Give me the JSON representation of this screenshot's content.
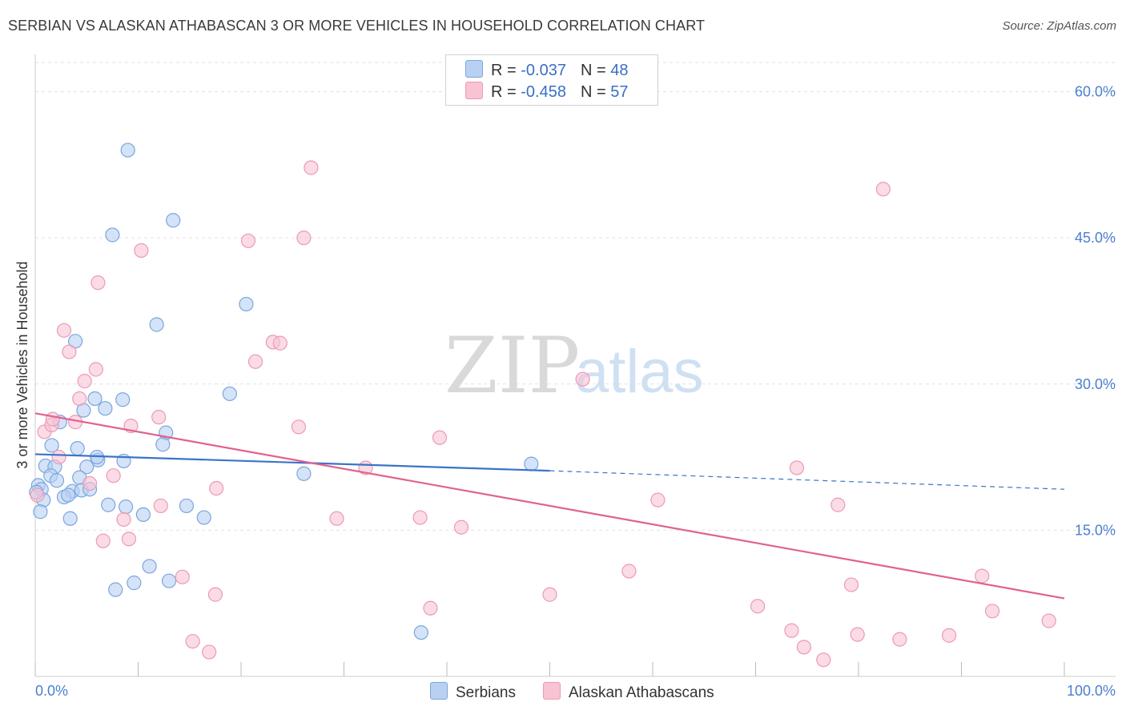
{
  "header": {
    "title": "SERBIAN VS ALASKAN ATHABASCAN 3 OR MORE VEHICLES IN HOUSEHOLD CORRELATION CHART",
    "source": "Source: ZipAtlas.com"
  },
  "legend": {
    "rows": [
      {
        "r_label": "R = ",
        "r_value": "-0.037",
        "n_label": "N = ",
        "n_value": "48"
      },
      {
        "r_label": "R = ",
        "r_value": "-0.458",
        "n_label": "N = ",
        "n_value": "57"
      }
    ]
  },
  "bottom_legend": {
    "series1": "Serbians",
    "series2": "Alaskan Athabascans"
  },
  "watermark": {
    "zip": "ZIP",
    "atlas": "atlas"
  },
  "colors": {
    "blue_fill": "#b8d1f2",
    "blue_stroke": "#7aa6de",
    "blue_line": "#3a74c8",
    "pink_fill": "#f8c3d3",
    "pink_stroke": "#ec9ab5",
    "pink_line": "#e0628e",
    "tick_label": "#4a7fd0",
    "grid": "#e2e2e2"
  },
  "chart_data": {
    "type": "scatter",
    "title": "SERBIAN VS ALASKAN ATHABASCAN 3 OR MORE VEHICLES IN HOUSEHOLD CORRELATION CHART",
    "xlabel": "",
    "ylabel": "3 or more Vehicles in Household",
    "xlim": [
      0,
      100
    ],
    "ylim": [
      0,
      63
    ],
    "x_tick_labels": [
      {
        "value": 0,
        "label": "0.0%"
      },
      {
        "value": 100,
        "label": "100.0%"
      }
    ],
    "y_ticks": [
      {
        "value": 15,
        "label": "15.0%"
      },
      {
        "value": 30,
        "label": "30.0%"
      },
      {
        "value": 45,
        "label": "45.0%"
      },
      {
        "value": 60,
        "label": "60.0%"
      }
    ],
    "x_minor_ticks": [
      0,
      10,
      20,
      30,
      40,
      50,
      60,
      70,
      80,
      90,
      100
    ],
    "series": [
      {
        "name": "Serbians",
        "r": -0.037,
        "n": 48,
        "trend": {
          "x": [
            0,
            50
          ],
          "y": [
            22.8,
            21.1
          ],
          "dash_x": [
            50,
            100
          ],
          "dash_y": [
            21.1,
            19.2
          ]
        },
        "points": [
          [
            9.0,
            54.0
          ],
          [
            7.5,
            45.3
          ],
          [
            13.4,
            46.8
          ],
          [
            20.5,
            38.2
          ],
          [
            11.8,
            36.1
          ],
          [
            3.9,
            34.4
          ],
          [
            18.9,
            29.0
          ],
          [
            5.8,
            28.5
          ],
          [
            8.5,
            28.4
          ],
          [
            4.7,
            27.3
          ],
          [
            6.8,
            27.5
          ],
          [
            2.4,
            26.1
          ],
          [
            12.7,
            25.0
          ],
          [
            1.6,
            23.7
          ],
          [
            4.1,
            23.4
          ],
          [
            12.4,
            23.8
          ],
          [
            6.1,
            22.2
          ],
          [
            6.0,
            22.5
          ],
          [
            8.6,
            22.1
          ],
          [
            1.0,
            21.6
          ],
          [
            1.9,
            21.5
          ],
          [
            5.0,
            21.5
          ],
          [
            26.1,
            20.8
          ],
          [
            48.2,
            21.8
          ],
          [
            1.5,
            20.6
          ],
          [
            2.1,
            20.1
          ],
          [
            4.3,
            20.4
          ],
          [
            0.3,
            19.6
          ],
          [
            0.6,
            19.2
          ],
          [
            3.6,
            19.0
          ],
          [
            4.5,
            19.1
          ],
          [
            5.3,
            19.2
          ],
          [
            2.8,
            18.4
          ],
          [
            3.2,
            18.6
          ],
          [
            0.8,
            18.1
          ],
          [
            0.1,
            18.9
          ],
          [
            7.1,
            17.6
          ],
          [
            8.8,
            17.4
          ],
          [
            14.7,
            17.5
          ],
          [
            0.5,
            16.9
          ],
          [
            10.5,
            16.6
          ],
          [
            3.4,
            16.2
          ],
          [
            16.4,
            16.3
          ],
          [
            11.1,
            11.3
          ],
          [
            9.6,
            9.6
          ],
          [
            13.0,
            9.8
          ],
          [
            7.8,
            8.9
          ],
          [
            37.5,
            4.5
          ]
        ]
      },
      {
        "name": "Alaskan Athabascans",
        "r": -0.458,
        "n": 57,
        "trend": {
          "x": [
            0,
            100
          ],
          "y": [
            27.0,
            8.0
          ]
        },
        "points": [
          [
            26.8,
            52.2
          ],
          [
            82.4,
            50.0
          ],
          [
            20.7,
            44.7
          ],
          [
            26.1,
            45.0
          ],
          [
            10.3,
            43.7
          ],
          [
            6.1,
            40.4
          ],
          [
            2.8,
            35.5
          ],
          [
            23.1,
            34.3
          ],
          [
            23.8,
            34.2
          ],
          [
            3.3,
            33.3
          ],
          [
            21.4,
            32.3
          ],
          [
            5.9,
            31.5
          ],
          [
            4.8,
            30.3
          ],
          [
            53.2,
            30.5
          ],
          [
            4.3,
            28.5
          ],
          [
            0.9,
            25.1
          ],
          [
            1.6,
            25.8
          ],
          [
            1.7,
            26.4
          ],
          [
            3.9,
            26.1
          ],
          [
            9.3,
            25.7
          ],
          [
            12.0,
            26.6
          ],
          [
            25.6,
            25.6
          ],
          [
            39.3,
            24.5
          ],
          [
            2.3,
            22.5
          ],
          [
            32.1,
            21.4
          ],
          [
            74.0,
            21.4
          ],
          [
            7.6,
            20.6
          ],
          [
            5.3,
            19.8
          ],
          [
            17.6,
            19.3
          ],
          [
            0.2,
            18.6
          ],
          [
            60.5,
            18.1
          ],
          [
            78.0,
            17.6
          ],
          [
            12.2,
            17.5
          ],
          [
            8.6,
            16.1
          ],
          [
            29.3,
            16.2
          ],
          [
            37.4,
            16.3
          ],
          [
            41.4,
            15.3
          ],
          [
            9.1,
            14.1
          ],
          [
            6.6,
            13.9
          ],
          [
            57.7,
            10.8
          ],
          [
            14.3,
            10.2
          ],
          [
            92.0,
            10.3
          ],
          [
            79.3,
            9.4
          ],
          [
            17.5,
            8.4
          ],
          [
            50.0,
            8.4
          ],
          [
            38.4,
            7.0
          ],
          [
            70.2,
            7.2
          ],
          [
            93.0,
            6.7
          ],
          [
            98.5,
            5.7
          ],
          [
            73.5,
            4.7
          ],
          [
            79.9,
            4.3
          ],
          [
            88.8,
            4.2
          ],
          [
            84.0,
            3.8
          ],
          [
            15.3,
            3.6
          ],
          [
            74.7,
            3.0
          ],
          [
            16.9,
            2.5
          ],
          [
            76.6,
            1.7
          ]
        ]
      }
    ]
  }
}
